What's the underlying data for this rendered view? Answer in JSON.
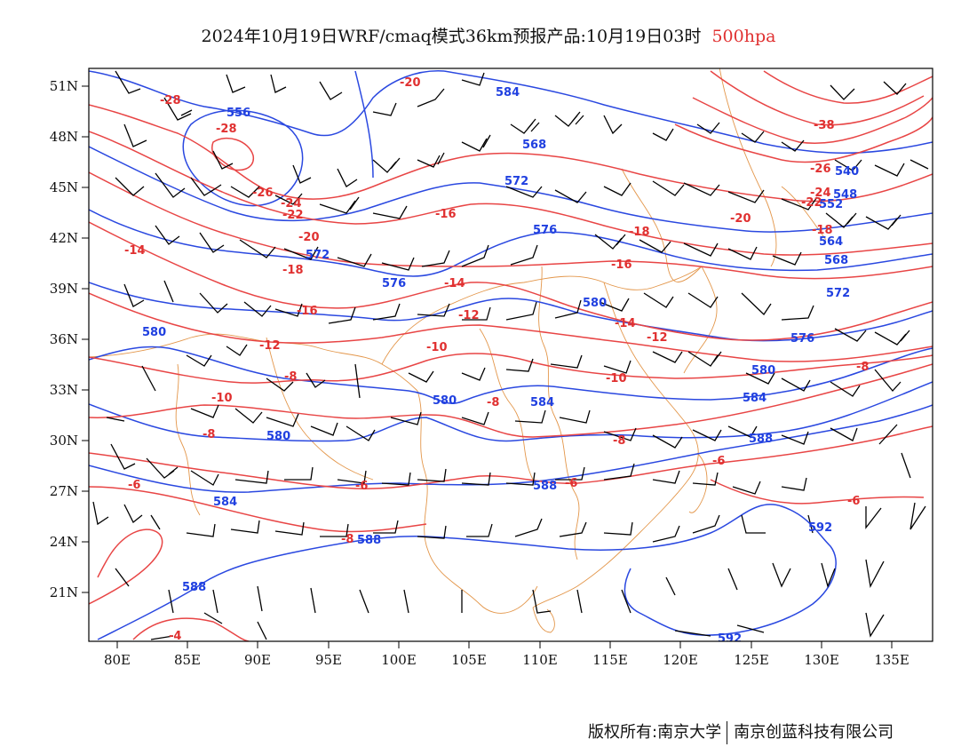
{
  "title": {
    "main": "2024年10月19日WRF/cmaq模式36km预报产品:10月19日03时",
    "level": "500hpa",
    "level_color": "#e03030"
  },
  "axes": {
    "x_ticks": [
      "80E",
      "85E",
      "90E",
      "95E",
      "100E",
      "105E",
      "110E",
      "115E",
      "120E",
      "125E",
      "130E",
      "135E"
    ],
    "y_ticks": [
      "51N",
      "48N",
      "45N",
      "42N",
      "39N",
      "36N",
      "33N",
      "30N",
      "27N",
      "24N",
      "21N"
    ]
  },
  "colors": {
    "height_contour": "#2a48e0",
    "temperature_contour": "#e84545",
    "coastline_borders": "#e3964a",
    "wind_barbs": "#000000"
  },
  "height_labels": [
    "584",
    "568",
    "556",
    "572",
    "572",
    "576",
    "576",
    "580",
    "580",
    "564",
    "580",
    "580",
    "584",
    "580",
    "584",
    "584",
    "588",
    "588",
    "588",
    "588",
    "592",
    "592",
    "540",
    "548",
    "552",
    "568",
    "572",
    "576"
  ],
  "temp_labels": [
    "-28",
    "-20",
    "-28",
    "-26",
    "-24",
    "-22",
    "-20",
    "-18",
    "-16",
    "-16",
    "-14",
    "-14",
    "-12",
    "-12",
    "-10",
    "-10",
    "-8",
    "-8",
    "-8",
    "-8",
    "-6",
    "-6",
    "-6",
    "-6",
    "-8",
    "-6",
    "-38",
    "-26",
    "-24",
    "-22",
    "-20",
    "-18",
    "-18",
    "-16",
    "-14",
    "-12",
    "-10",
    "-8",
    "-4"
  ],
  "footer": {
    "left": "版权所有:南京大学",
    "right": "南京创蓝科技有限公司"
  }
}
